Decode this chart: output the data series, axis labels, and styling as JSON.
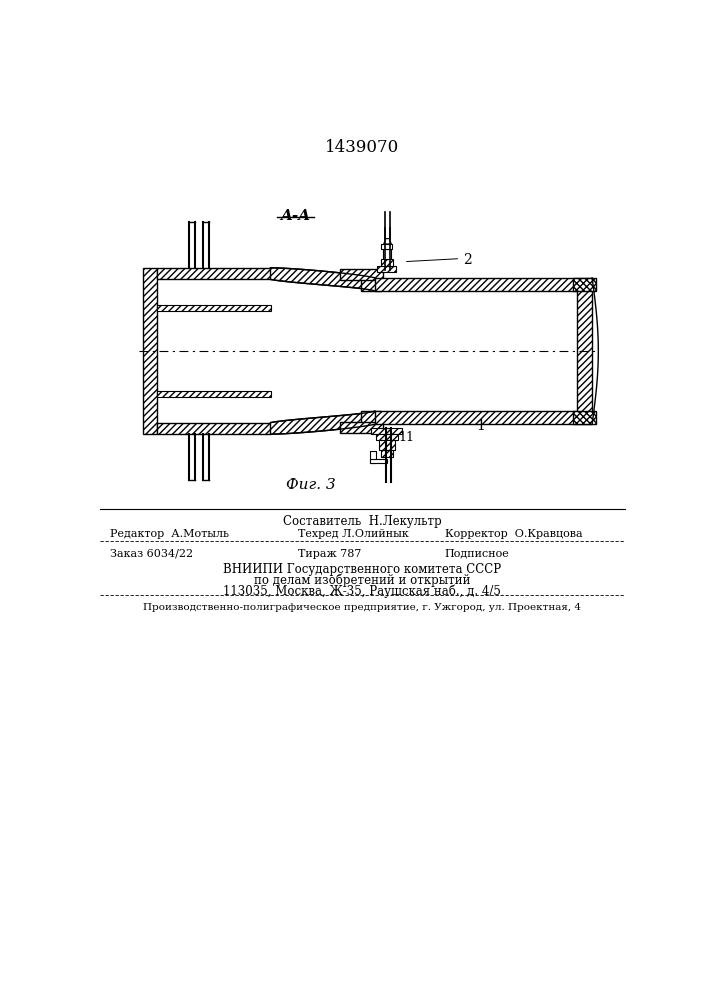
{
  "title": "1439070",
  "fig_label": "Фиг. 3",
  "section_label": "A-A",
  "label_1": "1",
  "label_2": "2",
  "label_11": "11",
  "bg_color": "#ffffff",
  "line_color": "#000000",
  "footer_line1": "Составитель  Н.Лекультр",
  "footer_line2_left": "Редактор  А.Мотыль",
  "footer_line2_mid": "Техред Л.Олийнык",
  "footer_line2_right": "Корректор  О.Кравцова",
  "footer_line3_left": "Заказ 6034/22",
  "footer_line3_mid": "Тираж 787",
  "footer_line3_right": "Подписное",
  "footer_line4": "ВНИИПИ Государственного комитета СССР",
  "footer_line5": "по делам изобретений и открытий",
  "footer_line6": "113035, Москва, Ж-35, Раушская наб., д. 4/5",
  "footer_line7": "Производственно-полиграфическое предприятие, г. Ужгород, ул. Проектная, 4"
}
